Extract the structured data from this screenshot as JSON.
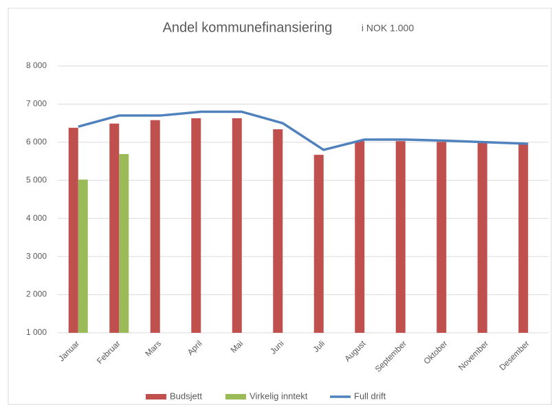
{
  "chart_data": {
    "type": "bar_line",
    "title": "Andel kommunefinansiering",
    "subtitle": "i NOK 1.000",
    "categories": [
      "Januar",
      "Februar",
      "Mars",
      "April",
      "Mai",
      "Juni",
      "Juli",
      "August",
      "September",
      "Oktober",
      "November",
      "Desember"
    ],
    "series": [
      {
        "name": "Budsjett",
        "type": "bar",
        "color": "#c0504d",
        "values": [
          6380,
          6490,
          6580,
          6630,
          6630,
          6340,
          5670,
          6030,
          6030,
          6010,
          6000,
          5980
        ]
      },
      {
        "name": "Virkelig inntekt",
        "type": "bar",
        "color": "#9bbb59",
        "values": [
          5020,
          5690,
          null,
          null,
          null,
          null,
          null,
          null,
          null,
          null,
          null,
          null
        ]
      },
      {
        "name": "Full drift",
        "type": "line",
        "color": "#4f81bd",
        "values": [
          6410,
          6700,
          6700,
          6800,
          6800,
          6500,
          5800,
          6070,
          6070,
          6040,
          6000,
          5960
        ]
      }
    ],
    "ylim": [
      1000,
      8000
    ],
    "yticks": [
      {
        "value": 1000,
        "label": "1 000"
      },
      {
        "value": 2000,
        "label": "2 000"
      },
      {
        "value": 3000,
        "label": "3 000"
      },
      {
        "value": 4000,
        "label": "4 000"
      },
      {
        "value": 5000,
        "label": "5 000"
      },
      {
        "value": 6000,
        "label": "6 000"
      },
      {
        "value": 7000,
        "label": "7 000"
      },
      {
        "value": 8000,
        "label": "8 000"
      }
    ],
    "grid": true,
    "legend": "bottom"
  }
}
